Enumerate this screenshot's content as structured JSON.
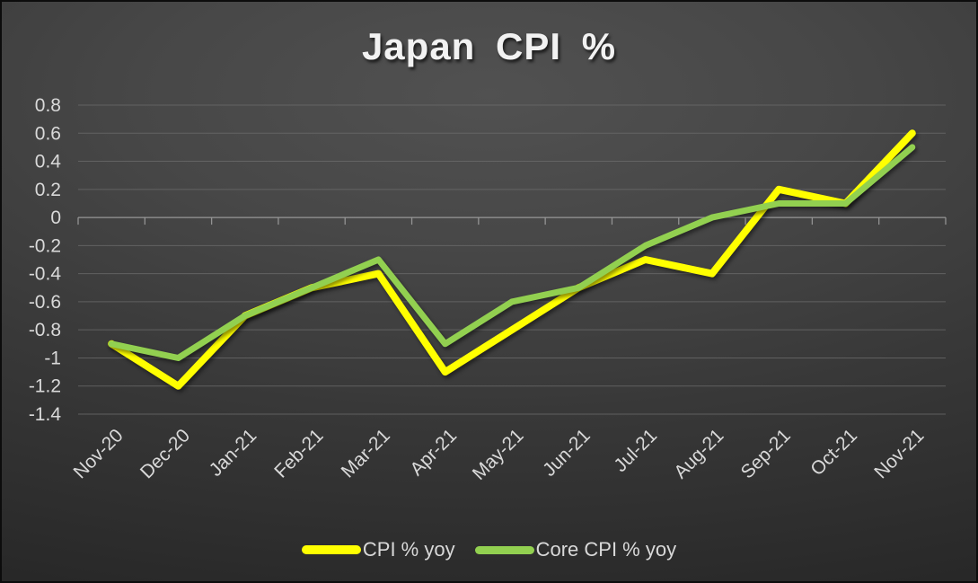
{
  "chart_data": {
    "type": "line",
    "title": "Japan CPI %",
    "xlabel": "",
    "ylabel": "",
    "categories": [
      "Nov-20",
      "Dec-20",
      "Jan-21",
      "Feb-21",
      "Mar-21",
      "Apr-21",
      "May-21",
      "Jun-21",
      "Jul-21",
      "Aug-21",
      "Sep-21",
      "Oct-21",
      "Nov-21"
    ],
    "series": [
      {
        "name": "CPI % yoy",
        "color": "#ffff00",
        "values": [
          -0.9,
          -1.2,
          -0.7,
          -0.5,
          -0.4,
          -1.1,
          -0.8,
          -0.5,
          -0.3,
          -0.4,
          0.2,
          0.1,
          0.6
        ]
      },
      {
        "name": "Core CPI % yoy",
        "color": "#92d050",
        "values": [
          -0.9,
          -1.0,
          -0.7,
          -0.5,
          -0.3,
          -0.9,
          -0.6,
          -0.5,
          -0.2,
          0.0,
          0.1,
          0.1,
          0.5
        ]
      }
    ],
    "ylim": [
      -1.4,
      0.8
    ],
    "ytick_step": 0.2,
    "ytick_labels": [
      "0.8",
      "0.6",
      "0.4",
      "0.2",
      "0",
      "-0.2",
      "-0.4",
      "-0.6",
      "-0.8",
      "-1",
      "-1.2",
      "-1.4"
    ],
    "grid": true,
    "legend_position": "bottom"
  },
  "colors": {
    "title_text": "#f2f2f2",
    "tick_text": "#d9d9d9",
    "gridline": "#6d6d6d",
    "zero_axis": "#9c9c9c",
    "background_center": "#515151",
    "background_edge": "#262626",
    "cpi_line": "#ffff00",
    "core_cpi_line": "#92d050"
  }
}
